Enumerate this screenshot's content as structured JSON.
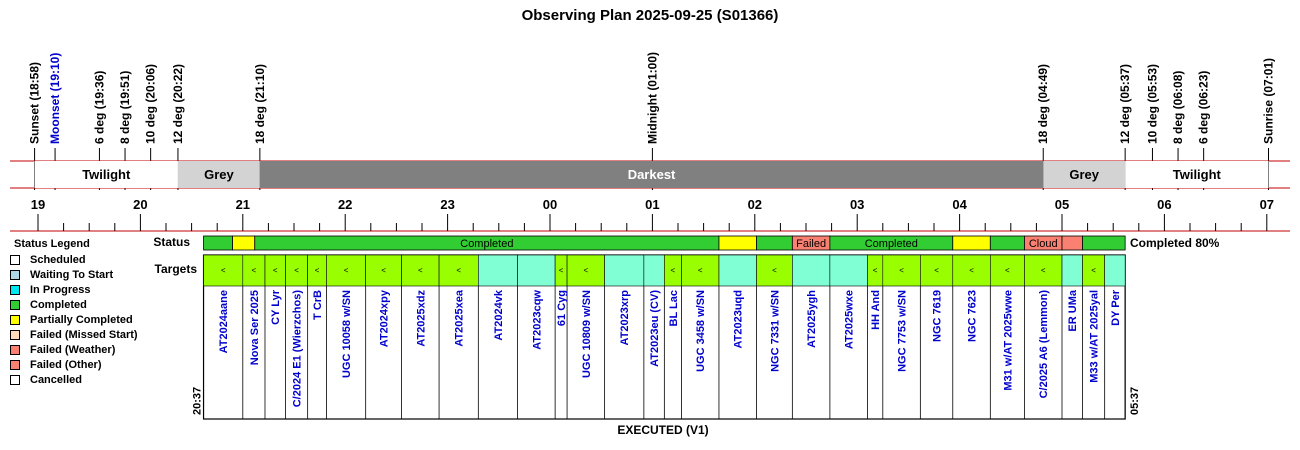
{
  "title": "Observing Plan 2025-09-25 (S01366)",
  "footer": "EXECUTED (V1)",
  "colors": {
    "twilight": "#ffffff",
    "grey": "#d3d3d3",
    "darkest": "#808080",
    "completed": "#32cd32",
    "partial": "#ffff00",
    "failed_weather": "#fa8072",
    "failed_other": "#fa8072",
    "target_green": "#99ff00",
    "target_cyan": "#80ffd4",
    "redline": "#c00000",
    "moon_blue": "#0000cc",
    "target_label_blue": "#0000cc"
  },
  "legend": {
    "title": "Status Legend",
    "items": [
      {
        "label": "Scheduled",
        "color": "#ffffff"
      },
      {
        "label": "Waiting To Start",
        "color": "#add8e6"
      },
      {
        "label": "In Progress",
        "color": "#00e5ee"
      },
      {
        "label": "Completed",
        "color": "#32cd32"
      },
      {
        "label": "Partially Completed",
        "color": "#ffff00"
      },
      {
        "label": "Failed (Missed Start)",
        "color": "#ffdab9"
      },
      {
        "label": "Failed (Weather)",
        "color": "#fa8072"
      },
      {
        "label": "Failed (Other)",
        "color": "#fa8072"
      },
      {
        "label": "Cancelled",
        "color": "#ffffff"
      }
    ]
  },
  "chart_data": {
    "type": "gantt",
    "time_axis": {
      "hour_ticks": [
        "19",
        "20",
        "21",
        "22",
        "23",
        "00",
        "01",
        "02",
        "03",
        "04",
        "05",
        "06",
        "07"
      ],
      "range": [
        "18:30",
        "07:10"
      ]
    },
    "events": [
      {
        "label": "Sunset (18:58)",
        "time": "18:58",
        "color": "#000000"
      },
      {
        "label": "Moonset (19:10)",
        "time": "19:10",
        "color": "#0000cc"
      },
      {
        "label": "6 deg (19:36)",
        "time": "19:36",
        "color": "#000000"
      },
      {
        "label": "8 deg (19:51)",
        "time": "19:51",
        "color": "#000000"
      },
      {
        "label": "10 deg (20:06)",
        "time": "20:06",
        "color": "#000000"
      },
      {
        "label": "12 deg (20:22)",
        "time": "20:22",
        "color": "#000000"
      },
      {
        "label": "18 deg (21:10)",
        "time": "21:10",
        "color": "#000000"
      },
      {
        "label": "Midnight (01:00)",
        "time": "01:00",
        "color": "#000000"
      },
      {
        "label": "18 deg (04:49)",
        "time": "04:49",
        "color": "#000000"
      },
      {
        "label": "12 deg (05:37)",
        "time": "05:37",
        "color": "#000000"
      },
      {
        "label": "10 deg (05:53)",
        "time": "05:53",
        "color": "#000000"
      },
      {
        "label": "8 deg (06:08)",
        "time": "06:08",
        "color": "#000000"
      },
      {
        "label": "6 deg (06:23)",
        "time": "06:23",
        "color": "#000000"
      },
      {
        "label": "Sunrise (07:01)",
        "time": "07:01",
        "color": "#000000"
      }
    ],
    "twilight_bands": [
      {
        "label": "Twilight",
        "start": "18:58",
        "end": "20:22",
        "kind": "twilight"
      },
      {
        "label": "Grey",
        "start": "20:22",
        "end": "21:10",
        "kind": "grey"
      },
      {
        "label": "Darkest",
        "start": "21:10",
        "end": "04:49",
        "kind": "darkest"
      },
      {
        "label": "Grey",
        "start": "04:49",
        "end": "05:37",
        "kind": "grey"
      },
      {
        "label": "Twilight",
        "start": "05:37",
        "end": "07:01",
        "kind": "twilight"
      }
    ],
    "plan_window": {
      "start": "20:37",
      "end": "05:37",
      "start_label": "20:37",
      "end_label": "05:37"
    },
    "status_row_label": "Status",
    "targets_row_label": "Targets",
    "summary": "Completed 80%",
    "status_segments": [
      {
        "start": "20:37",
        "end": "20:54",
        "status": "completed",
        "label": ""
      },
      {
        "start": "20:54",
        "end": "21:07",
        "status": "partial",
        "label": ""
      },
      {
        "start": "21:07",
        "end": "01:39",
        "status": "completed",
        "label": "Completed"
      },
      {
        "start": "01:39",
        "end": "02:01",
        "status": "partial",
        "label": ""
      },
      {
        "start": "02:01",
        "end": "02:22",
        "status": "completed",
        "label": ""
      },
      {
        "start": "02:22",
        "end": "02:44",
        "status": "failed_weather",
        "label": "Failed"
      },
      {
        "start": "02:44",
        "end": "03:56",
        "status": "completed",
        "label": "Completed"
      },
      {
        "start": "03:56",
        "end": "04:18",
        "status": "partial",
        "label": ""
      },
      {
        "start": "04:18",
        "end": "04:38",
        "status": "completed",
        "label": ""
      },
      {
        "start": "04:38",
        "end": "05:00",
        "status": "failed_other",
        "label": "Cloud"
      },
      {
        "start": "05:00",
        "end": "05:12",
        "status": "failed_other",
        "label": ""
      },
      {
        "start": "05:12",
        "end": "05:37",
        "status": "completed",
        "label": ""
      }
    ],
    "targets": [
      {
        "name": "AT2024aane",
        "start": "20:37",
        "end": "21:00",
        "color": "green"
      },
      {
        "name": "Nova Ser 2025",
        "start": "21:00",
        "end": "21:13",
        "color": "green"
      },
      {
        "name": "CY Lyr",
        "start": "21:13",
        "end": "21:25",
        "color": "green"
      },
      {
        "name": "C/2024 E1 (Wierzchos)",
        "start": "21:25",
        "end": "21:38",
        "color": "green"
      },
      {
        "name": "T CrB",
        "start": "21:38",
        "end": "21:49",
        "color": "green"
      },
      {
        "name": "UGC 10058 w/SN",
        "start": "21:49",
        "end": "22:12",
        "color": "green"
      },
      {
        "name": "AT2024xpy",
        "start": "22:12",
        "end": "22:33",
        "color": "green"
      },
      {
        "name": "AT2025xdz",
        "start": "22:33",
        "end": "22:55",
        "color": "green"
      },
      {
        "name": "AT2025xea",
        "start": "22:55",
        "end": "23:18",
        "color": "green"
      },
      {
        "name": "AT2024vk",
        "start": "23:18",
        "end": "23:41",
        "color": "cyan"
      },
      {
        "name": "AT2023cqw",
        "start": "23:41",
        "end": "00:03",
        "color": "cyan"
      },
      {
        "name": "61 Cyg",
        "start": "00:03",
        "end": "00:10",
        "color": "green"
      },
      {
        "name": "UGC 10809 w/SN",
        "start": "00:10",
        "end": "00:32",
        "color": "green"
      },
      {
        "name": "AT2023xrp",
        "start": "00:32",
        "end": "00:55",
        "color": "cyan"
      },
      {
        "name": "AT2023eu (CV)",
        "start": "00:55",
        "end": "01:07",
        "color": "cyan"
      },
      {
        "name": "BL Lac",
        "start": "01:07",
        "end": "01:17",
        "color": "green"
      },
      {
        "name": "UGC 3458 w/SN",
        "start": "01:17",
        "end": "01:39",
        "color": "green"
      },
      {
        "name": "AT2023uqd",
        "start": "01:39",
        "end": "02:01",
        "color": "cyan"
      },
      {
        "name": "NGC 7331 w/SN",
        "start": "02:01",
        "end": "02:22",
        "color": "green"
      },
      {
        "name": "AT2025ygh",
        "start": "02:22",
        "end": "02:44",
        "color": "cyan"
      },
      {
        "name": "AT2025wxe",
        "start": "02:44",
        "end": "03:06",
        "color": "cyan"
      },
      {
        "name": "HH And",
        "start": "03:06",
        "end": "03:15",
        "color": "green"
      },
      {
        "name": "NGC 7753 w/SN",
        "start": "03:15",
        "end": "03:37",
        "color": "green"
      },
      {
        "name": "NGC 7619",
        "start": "03:37",
        "end": "03:56",
        "color": "green"
      },
      {
        "name": "NGC 7623",
        "start": "03:56",
        "end": "04:18",
        "color": "green"
      },
      {
        "name": "M31 w/AT 2025wwe",
        "start": "04:18",
        "end": "04:38",
        "color": "green"
      },
      {
        "name": "C/2025 A6 (Lemmon)",
        "start": "04:38",
        "end": "05:00",
        "color": "green"
      },
      {
        "name": "ER UMa",
        "start": "05:00",
        "end": "05:12",
        "color": "cyan"
      },
      {
        "name": "M33 w/AT 2025yal",
        "start": "05:12",
        "end": "05:25",
        "color": "green"
      },
      {
        "name": "DY Per",
        "start": "05:25",
        "end": "05:37",
        "color": "cyan"
      }
    ]
  }
}
